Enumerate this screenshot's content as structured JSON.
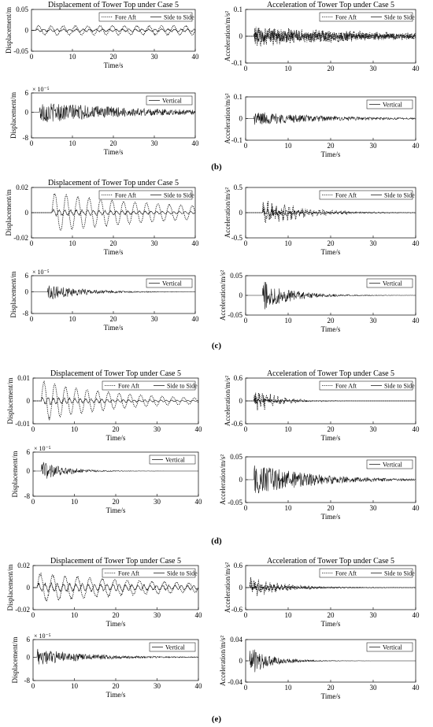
{
  "figure": {
    "panel_labels": [
      "(b)",
      "(c)",
      "(d)",
      "(e)"
    ]
  },
  "chart_data": [
    {
      "id": "b-disp-h",
      "type": "line",
      "title": "Displacement of Tower Top under Case 5",
      "xlabel": "Time/s",
      "ylabel": "Displacement/m",
      "xlim": [
        0,
        40
      ],
      "ylim": [
        -0.05,
        0.05
      ],
      "xticks": [
        "0",
        "10",
        "20",
        "30",
        "40"
      ],
      "yticks": [
        "0.05",
        "0",
        "-0.05"
      ],
      "legend_position": "top-right",
      "series": [
        {
          "name": "Fore Aft",
          "style": "dotted",
          "amplitude": 0.012,
          "period": 3.0,
          "onset": 1,
          "noise": 0.1,
          "decay": 0
        },
        {
          "name": "Side to Side",
          "style": "solid",
          "amplitude": 0.004,
          "period": 1.6,
          "onset": 1,
          "noise": 0.35,
          "decay": 0
        }
      ]
    },
    {
      "id": "b-acc-h",
      "type": "line",
      "title": "Acceleration of Tower Top under Case 5",
      "xlabel": "",
      "ylabel": "Acceleration/m/s²",
      "xlim": [
        0,
        40
      ],
      "ylim": [
        -0.1,
        0.1
      ],
      "xticks": [
        "0",
        "10",
        "20",
        "30",
        "40"
      ],
      "yticks": [
        "0.1",
        "0",
        "-0.1"
      ],
      "legend_position": "top-right",
      "series": [
        {
          "name": "Fore Aft",
          "style": "dotted",
          "amplitude": 0.04,
          "period": 0.8,
          "onset": 2,
          "noise": 0.9,
          "decay": 0.03
        },
        {
          "name": "Side to Side",
          "style": "solid",
          "amplitude": 0.025,
          "period": 0.7,
          "onset": 2,
          "noise": 0.9,
          "decay": 0.03
        }
      ]
    },
    {
      "id": "b-disp-v",
      "type": "line",
      "title": "",
      "xlabel": "Time/s",
      "ylabel": "Displacement/m",
      "exponent": "× 10⁻⁵",
      "xlim": [
        0,
        40
      ],
      "ylim": [
        -8,
        6
      ],
      "xticks": [
        "0",
        "10",
        "20",
        "30",
        "40"
      ],
      "yticks": [
        "6",
        "0",
        "-8"
      ],
      "legend_position": "top-right",
      "series": [
        {
          "name": "Vertical",
          "style": "solid",
          "amplitude": 3.5,
          "period": 0.5,
          "onset": 2,
          "noise": 0.95,
          "decay": 0.04
        }
      ]
    },
    {
      "id": "b-acc-v",
      "type": "line",
      "title": "",
      "xlabel": "Time/s",
      "ylabel": "Acceleration/m/s²",
      "xlim": [
        0,
        40
      ],
      "ylim": [
        -0.1,
        0.1
      ],
      "xticks": [
        "0",
        "10",
        "20",
        "30",
        "40"
      ],
      "yticks": [
        "0.1",
        "0",
        "-0.1"
      ],
      "legend_position": "top-right",
      "series": [
        {
          "name": "Vertical",
          "style": "solid",
          "amplitude": 0.035,
          "period": 0.3,
          "onset": 2,
          "noise": 0.95,
          "decay": 0.06
        }
      ]
    },
    {
      "id": "c-disp-h",
      "type": "line",
      "title": "Displacement of Tower Top under Case 5",
      "xlabel": "Time/s",
      "ylabel": "Displacement/m",
      "xlim": [
        0,
        40
      ],
      "ylim": [
        -0.02,
        0.02
      ],
      "xticks": [
        "0",
        "10",
        "20",
        "30",
        "40"
      ],
      "yticks": [
        "0.02",
        "0",
        "-0.02"
      ],
      "legend_position": "top-right",
      "series": [
        {
          "name": "Fore Aft",
          "style": "dotted",
          "amplitude": 0.016,
          "period": 2.8,
          "onset": 5,
          "noise": 0.05,
          "decay": 0.03
        },
        {
          "name": "Side to Side",
          "style": "solid",
          "amplitude": 0.003,
          "period": 1.4,
          "onset": 5,
          "noise": 0.3,
          "decay": 0.03
        }
      ]
    },
    {
      "id": "c-acc-h",
      "type": "line",
      "title": "",
      "xlabel": "Time/s",
      "ylabel": "Acceleration/m/s²",
      "xlim": [
        0,
        40
      ],
      "ylim": [
        -0.5,
        0.5
      ],
      "xticks": [
        "0",
        "10",
        "20",
        "30",
        "40"
      ],
      "yticks": [
        "0.5",
        "0",
        "-0.5"
      ],
      "legend_position": "top-right",
      "series": [
        {
          "name": "Fore Aft",
          "style": "dotted",
          "amplitude": 0.35,
          "period": 1.0,
          "onset": 4,
          "noise": 0.6,
          "decay": 0.12
        },
        {
          "name": "Side to Side",
          "style": "solid",
          "amplitude": 0.1,
          "period": 0.9,
          "onset": 4,
          "noise": 0.6,
          "decay": 0.12
        }
      ]
    },
    {
      "id": "c-disp-v",
      "type": "line",
      "title": "",
      "xlabel": "Time/s",
      "ylabel": "Displacement/m",
      "exponent": "× 10⁻⁵",
      "xlim": [
        0,
        40
      ],
      "ylim": [
        -8,
        6
      ],
      "xticks": [
        "0",
        "10",
        "20",
        "30",
        "40"
      ],
      "yticks": [
        "6",
        "0",
        "-8"
      ],
      "legend_position": "top-right",
      "series": [
        {
          "name": "Vertical",
          "style": "solid",
          "amplitude": 3.5,
          "period": 0.5,
          "onset": 4,
          "noise": 0.9,
          "decay": 0.12
        }
      ]
    },
    {
      "id": "c-acc-v",
      "type": "line",
      "title": "",
      "xlabel": "Time/s",
      "ylabel": "Acceleration/m/s²",
      "xlim": [
        0,
        40
      ],
      "ylim": [
        -0.05,
        0.05
      ],
      "xticks": [
        "0",
        "10",
        "20",
        "30",
        "40"
      ],
      "yticks": [
        "0.05",
        "0",
        "-0.05"
      ],
      "legend_position": "top-right",
      "series": [
        {
          "name": "Vertical",
          "style": "solid",
          "amplitude": 0.04,
          "period": 0.3,
          "onset": 4,
          "noise": 0.95,
          "decay": 0.15
        }
      ]
    },
    {
      "id": "d-disp-h",
      "type": "line",
      "title": "Displacement of Tower Top under Case 5",
      "xlabel": "Time/s",
      "ylabel": "Displacement/m",
      "xlim": [
        0,
        40
      ],
      "ylim": [
        -0.01,
        0.01
      ],
      "xticks": [
        "0",
        "10",
        "20",
        "30",
        "40"
      ],
      "yticks": [
        "0.01",
        "0",
        "-0.01"
      ],
      "legend_position": "top-right",
      "series": [
        {
          "name": "Fore Aft",
          "style": "dotted",
          "amplitude": 0.009,
          "period": 2.6,
          "onset": 2,
          "noise": 0.05,
          "decay": 0.05
        },
        {
          "name": "Side to Side",
          "style": "solid",
          "amplitude": 0.002,
          "period": 1.3,
          "onset": 2,
          "noise": 0.3,
          "decay": 0.05
        }
      ]
    },
    {
      "id": "d-acc-h",
      "type": "line",
      "title": "Acceleration of Tower Top under Case 5",
      "xlabel": "Time/s",
      "ylabel": "Acceleration/m/s²",
      "xlim": [
        0,
        40
      ],
      "ylim": [
        -0.6,
        0.6
      ],
      "xticks": [
        "0",
        "10",
        "20",
        "30",
        "40"
      ],
      "yticks": [
        "0.6",
        "0",
        "-0.6"
      ],
      "legend_position": "top-right",
      "series": [
        {
          "name": "Fore Aft",
          "style": "dotted",
          "amplitude": 0.4,
          "period": 0.9,
          "onset": 2,
          "noise": 0.6,
          "decay": 0.2
        },
        {
          "name": "Side to Side",
          "style": "solid",
          "amplitude": 0.1,
          "period": 0.8,
          "onset": 2,
          "noise": 0.6,
          "decay": 0.2
        }
      ]
    },
    {
      "id": "d-disp-v",
      "type": "line",
      "title": "",
      "xlabel": "Time/s",
      "ylabel": "Displacement/m",
      "exponent": "× 10⁻⁵",
      "xlim": [
        0,
        40
      ],
      "ylim": [
        -8,
        6
      ],
      "xticks": [
        "0",
        "10",
        "20",
        "30",
        "40"
      ],
      "yticks": [
        "6",
        "0",
        "-8"
      ],
      "legend_position": "top-right",
      "series": [
        {
          "name": "Vertical",
          "style": "solid",
          "amplitude": 3.5,
          "period": 0.5,
          "onset": 2,
          "noise": 0.9,
          "decay": 0.18
        }
      ]
    },
    {
      "id": "d-acc-v",
      "type": "line",
      "title": "",
      "xlabel": "Time/s",
      "ylabel": "Acceleration/m/s²",
      "xlim": [
        0,
        40
      ],
      "ylim": [
        -0.05,
        0.05
      ],
      "xticks": [
        "0",
        "10",
        "20",
        "30",
        "40"
      ],
      "yticks": [
        "0.05",
        "0",
        "-0.05"
      ],
      "legend_position": "top-right",
      "series": [
        {
          "name": "Vertical",
          "style": "solid",
          "amplitude": 0.04,
          "period": 0.25,
          "onset": 2,
          "noise": 0.95,
          "decay": 0.08
        }
      ]
    },
    {
      "id": "e-disp-h",
      "type": "line",
      "title": "Displacement of Tower Top under Case 5",
      "xlabel": "Time/s",
      "ylabel": "Displacement/m",
      "xlim": [
        0,
        40
      ],
      "ylim": [
        -0.02,
        0.02
      ],
      "xticks": [
        "0",
        "10",
        "20",
        "30",
        "40"
      ],
      "yticks": [
        "0.02",
        "0",
        "-0.02"
      ],
      "legend_position": "top-right",
      "series": [
        {
          "name": "Fore Aft",
          "style": "dotted",
          "amplitude": 0.014,
          "period": 3.0,
          "onset": 1,
          "noise": 0.1,
          "decay": 0.03
        },
        {
          "name": "Side to Side",
          "style": "solid",
          "amplitude": 0.005,
          "period": 1.5,
          "onset": 1,
          "noise": 0.3,
          "decay": 0.02
        }
      ]
    },
    {
      "id": "e-acc-h",
      "type": "line",
      "title": "Acceleration of Tower Top under Case 5",
      "xlabel": "Time/s",
      "ylabel": "Acceleration/m/s²",
      "xlim": [
        0,
        40
      ],
      "ylim": [
        -0.6,
        0.6
      ],
      "xticks": [
        "0",
        "10",
        "20",
        "30",
        "40"
      ],
      "yticks": [
        "0.6",
        "0",
        "-0.6"
      ],
      "legend_position": "top-right",
      "series": [
        {
          "name": "Fore Aft",
          "style": "dotted",
          "amplitude": 0.35,
          "period": 0.9,
          "onset": 1,
          "noise": 0.6,
          "decay": 0.15
        },
        {
          "name": "Side to Side",
          "style": "solid",
          "amplitude": 0.12,
          "period": 0.8,
          "onset": 1,
          "noise": 0.6,
          "decay": 0.08
        }
      ]
    },
    {
      "id": "e-disp-v",
      "type": "line",
      "title": "",
      "xlabel": "Time/s",
      "ylabel": "Displacement/m",
      "exponent": "× 10⁻⁵",
      "xlim": [
        0,
        40
      ],
      "ylim": [
        -8,
        6
      ],
      "xticks": [
        "0",
        "10",
        "20",
        "30",
        "40"
      ],
      "yticks": [
        "6",
        "0",
        "-8"
      ],
      "legend_position": "top-right",
      "series": [
        {
          "name": "Vertical",
          "style": "solid",
          "amplitude": 3.0,
          "period": 0.5,
          "onset": 1,
          "noise": 0.9,
          "decay": 0.08
        }
      ]
    },
    {
      "id": "e-acc-v",
      "type": "line",
      "title": "",
      "xlabel": "Time/s",
      "ylabel": "Acceleration/m/s²",
      "xlim": [
        0,
        40
      ],
      "ylim": [
        -0.04,
        0.04
      ],
      "xticks": [
        "0",
        "10",
        "20",
        "30",
        "40"
      ],
      "yticks": [
        "0.04",
        "0",
        "-0.04"
      ],
      "legend_position": "top-right",
      "series": [
        {
          "name": "Vertical",
          "style": "solid",
          "amplitude": 0.03,
          "period": 0.25,
          "onset": 1,
          "noise": 0.9,
          "decay": 0.2
        }
      ]
    }
  ]
}
